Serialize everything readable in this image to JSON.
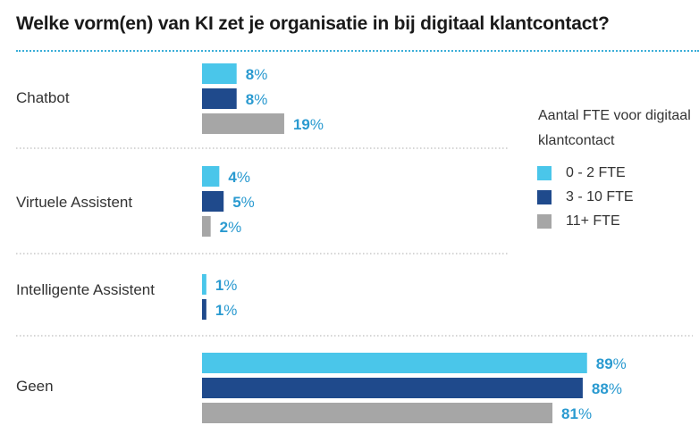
{
  "chart_data": {
    "type": "bar",
    "orientation": "horizontal",
    "title": "Welke vorm(en) van KI zet je organisatie in bij digitaal klantcontact?",
    "categories": [
      "Chatbot",
      "Virtuele Assistent",
      "Intelligente Assistent",
      "Geen"
    ],
    "series": [
      {
        "name": "0 - 2 FTE",
        "color": "#4ac6ea",
        "values": [
          8,
          4,
          1,
          89
        ]
      },
      {
        "name": "3 - 10 FTE",
        "color": "#1f4a8c",
        "values": [
          8,
          5,
          1,
          88
        ]
      },
      {
        "name": "11+ FTE",
        "color": "#a6a6a6",
        "values": [
          19,
          2,
          null,
          81
        ]
      }
    ],
    "value_suffix": "%",
    "legend_title": "Aantal FTE voor digitaal klantcontact",
    "legend_position": "right",
    "xlabel": "",
    "ylabel": "",
    "xlim": [
      0,
      100
    ],
    "grid": false
  },
  "colors": {
    "title_rule": "#3aaed8",
    "value_label": "#2a9ad0",
    "separator": "#c8c8c8"
  }
}
